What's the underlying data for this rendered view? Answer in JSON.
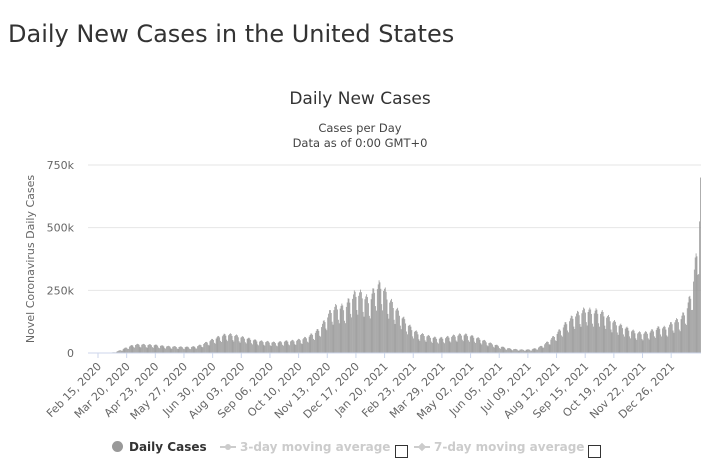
{
  "page": {
    "title": "Daily New Cases in the United States"
  },
  "legend": {
    "daily_label": "Daily Cases",
    "ma3_label": "3-day moving average",
    "ma7_label": "7-day moving average",
    "daily_color": "#999999",
    "inactive_color": "#cccccc"
  },
  "chart_data": {
    "type": "bar",
    "title": "Daily New Cases",
    "subtitle": [
      "Cases per Day",
      "Data as of 0:00 GMT+0"
    ],
    "ylabel": "Novel Coronavirus Daily Cases",
    "xlabel": "",
    "ylim": [
      0,
      750000
    ],
    "y_ticks": [
      {
        "value": 0,
        "label": "0"
      },
      {
        "value": 250000,
        "label": "250k"
      },
      {
        "value": 500000,
        "label": "500k"
      },
      {
        "value": 750000,
        "label": "750k"
      }
    ],
    "x_tick_labels": [
      "Feb 15, 2020",
      "Mar 20, 2020",
      "Apr 23, 2020",
      "May 27, 2020",
      "Jun 30, 2020",
      "Aug 03, 2020",
      "Sep 06, 2020",
      "Oct 10, 2020",
      "Nov 13, 2020",
      "Dec 17, 2020",
      "Jan 20, 2021",
      "Feb 23, 2021",
      "Mar 29, 2021",
      "May 02, 2021",
      "Jun 05, 2021",
      "Jul 09, 2021",
      "Aug 12, 2021",
      "Sep 15, 2021",
      "Oct 19, 2021",
      "Nov 22, 2021",
      "Dec 26, 2021"
    ],
    "grid": true,
    "legend_position": "bottom",
    "series": [
      {
        "name": "Daily Cases",
        "color": "#999999",
        "weekly": [
          {
            "date": "Feb 15, 2020",
            "value": 0
          },
          {
            "date": "Feb 22, 2020",
            "value": 0
          },
          {
            "date": "Feb 29, 2020",
            "value": 0
          },
          {
            "date": "Mar 07, 2020",
            "value": 1000
          },
          {
            "date": "Mar 14, 2020",
            "value": 3000
          },
          {
            "date": "Mar 21, 2020",
            "value": 12000
          },
          {
            "date": "Mar 28, 2020",
            "value": 22000
          },
          {
            "date": "Apr 04, 2020",
            "value": 30000
          },
          {
            "date": "Apr 11, 2020",
            "value": 32000
          },
          {
            "date": "Apr 18, 2020",
            "value": 30000
          },
          {
            "date": "Apr 25, 2020",
            "value": 30000
          },
          {
            "date": "May 02, 2020",
            "value": 28000
          },
          {
            "date": "May 09, 2020",
            "value": 25000
          },
          {
            "date": "May 16, 2020",
            "value": 24000
          },
          {
            "date": "May 23, 2020",
            "value": 23000
          },
          {
            "date": "May 30, 2020",
            "value": 22000
          },
          {
            "date": "Jun 06, 2020",
            "value": 22000
          },
          {
            "date": "Jun 13, 2020",
            "value": 24000
          },
          {
            "date": "Jun 20, 2020",
            "value": 31000
          },
          {
            "date": "Jun 27, 2020",
            "value": 42000
          },
          {
            "date": "Jul 04, 2020",
            "value": 52000
          },
          {
            "date": "Jul 11, 2020",
            "value": 62000
          },
          {
            "date": "Jul 18, 2020",
            "value": 68000
          },
          {
            "date": "Jul 25, 2020",
            "value": 66000
          },
          {
            "date": "Aug 01, 2020",
            "value": 60000
          },
          {
            "date": "Aug 08, 2020",
            "value": 55000
          },
          {
            "date": "Aug 15, 2020",
            "value": 50000
          },
          {
            "date": "Aug 22, 2020",
            "value": 44000
          },
          {
            "date": "Aug 29, 2020",
            "value": 42000
          },
          {
            "date": "Sep 05, 2020",
            "value": 40000
          },
          {
            "date": "Sep 12, 2020",
            "value": 38000
          },
          {
            "date": "Sep 19, 2020",
            "value": 42000
          },
          {
            "date": "Sep 26, 2020",
            "value": 44000
          },
          {
            "date": "Oct 03, 2020",
            "value": 45000
          },
          {
            "date": "Oct 10, 2020",
            "value": 50000
          },
          {
            "date": "Oct 17, 2020",
            "value": 58000
          },
          {
            "date": "Oct 24, 2020",
            "value": 72000
          },
          {
            "date": "Oct 31, 2020",
            "value": 88000
          },
          {
            "date": "Nov 07, 2020",
            "value": 125000
          },
          {
            "date": "Nov 14, 2020",
            "value": 160000
          },
          {
            "date": "Nov 21, 2020",
            "value": 170000
          },
          {
            "date": "Nov 28, 2020",
            "value": 165000
          },
          {
            "date": "Dec 05, 2020",
            "value": 200000
          },
          {
            "date": "Dec 12, 2020",
            "value": 220000
          },
          {
            "date": "Dec 19, 2020",
            "value": 210000
          },
          {
            "date": "Dec 26, 2020",
            "value": 190000
          },
          {
            "date": "Jan 02, 2021",
            "value": 240000
          },
          {
            "date": "Jan 09, 2021",
            "value": 250000
          },
          {
            "date": "Jan 16, 2021",
            "value": 200000
          },
          {
            "date": "Jan 23, 2021",
            "value": 170000
          },
          {
            "date": "Jan 30, 2021",
            "value": 140000
          },
          {
            "date": "Feb 06, 2021",
            "value": 110000
          },
          {
            "date": "Feb 13, 2021",
            "value": 85000
          },
          {
            "date": "Feb 20, 2021",
            "value": 70000
          },
          {
            "date": "Feb 27, 2021",
            "value": 65000
          },
          {
            "date": "Mar 06, 2021",
            "value": 58000
          },
          {
            "date": "Mar 13, 2021",
            "value": 54000
          },
          {
            "date": "Mar 20, 2021",
            "value": 55000
          },
          {
            "date": "Mar 27, 2021",
            "value": 60000
          },
          {
            "date": "Apr 03, 2021",
            "value": 64000
          },
          {
            "date": "Apr 10, 2021",
            "value": 68000
          },
          {
            "date": "Apr 17, 2021",
            "value": 65000
          },
          {
            "date": "Apr 24, 2021",
            "value": 58000
          },
          {
            "date": "May 01, 2021",
            "value": 50000
          },
          {
            "date": "May 08, 2021",
            "value": 40000
          },
          {
            "date": "May 15, 2021",
            "value": 32000
          },
          {
            "date": "May 22, 2021",
            "value": 25000
          },
          {
            "date": "May 29, 2021",
            "value": 19000
          },
          {
            "date": "Jun 05, 2021",
            "value": 15000
          },
          {
            "date": "Jun 12, 2021",
            "value": 13000
          },
          {
            "date": "Jun 19, 2021",
            "value": 12000
          },
          {
            "date": "Jun 26, 2021",
            "value": 13000
          },
          {
            "date": "Jul 03, 2021",
            "value": 18000
          },
          {
            "date": "Jul 10, 2021",
            "value": 28000
          },
          {
            "date": "Jul 17, 2021",
            "value": 45000
          },
          {
            "date": "Jul 24, 2021",
            "value": 65000
          },
          {
            "date": "Jul 31, 2021",
            "value": 90000
          },
          {
            "date": "Aug 07, 2021",
            "value": 115000
          },
          {
            "date": "Aug 14, 2021",
            "value": 135000
          },
          {
            "date": "Aug 21, 2021",
            "value": 148000
          },
          {
            "date": "Aug 28, 2021",
            "value": 158000
          },
          {
            "date": "Sep 04, 2021",
            "value": 150000
          },
          {
            "date": "Sep 11, 2021",
            "value": 152000
          },
          {
            "date": "Sep 18, 2021",
            "value": 140000
          },
          {
            "date": "Sep 25, 2021",
            "value": 120000
          },
          {
            "date": "Oct 02, 2021",
            "value": 105000
          },
          {
            "date": "Oct 09, 2021",
            "value": 95000
          },
          {
            "date": "Oct 16, 2021",
            "value": 85000
          },
          {
            "date": "Oct 23, 2021",
            "value": 75000
          },
          {
            "date": "Oct 30, 2021",
            "value": 72000
          },
          {
            "date": "Nov 06, 2021",
            "value": 75000
          },
          {
            "date": "Nov 13, 2021",
            "value": 85000
          },
          {
            "date": "Nov 20, 2021",
            "value": 95000
          },
          {
            "date": "Nov 27, 2021",
            "value": 90000
          },
          {
            "date": "Dec 04, 2021",
            "value": 115000
          },
          {
            "date": "Dec 11, 2021",
            "value": 120000
          },
          {
            "date": "Dec 18, 2021",
            "value": 150000
          },
          {
            "date": "Dec 25, 2021",
            "value": 220000
          },
          {
            "date": "Jan 01, 2022",
            "value": 400000
          },
          {
            "date": "Jan 05, 2022",
            "value": 600000
          }
        ]
      }
    ],
    "peak_value": 700000
  }
}
